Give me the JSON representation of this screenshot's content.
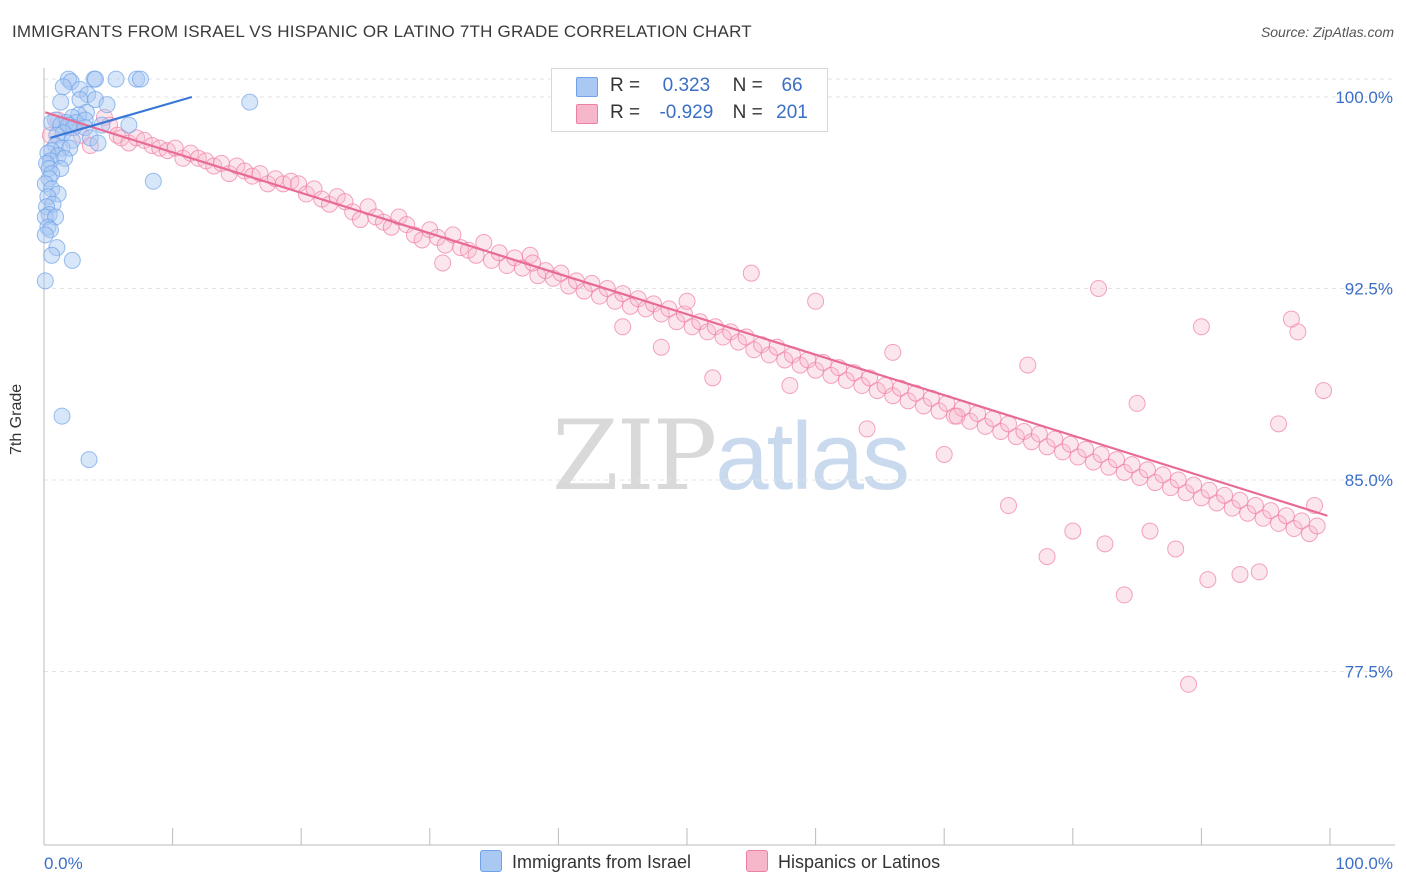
{
  "title": "IMMIGRANTS FROM ISRAEL VS HISPANIC OR LATINO 7TH GRADE CORRELATION CHART",
  "source": "Source: ZipAtlas.com",
  "watermark": {
    "zip": "ZIP",
    "atlas": "atlas"
  },
  "stats": [
    {
      "r_label": "R = ",
      "r_value": "0.323",
      "n_label": "N = ",
      "n_value": "66",
      "color": "#a9c8f2"
    },
    {
      "r_label": "R = ",
      "r_value": "-0.929",
      "n_label": "N = ",
      "n_value": "201",
      "color": "#f6b7ca"
    }
  ],
  "legend": [
    {
      "label": "Immigrants from Israel",
      "color": "#a9c8f2"
    },
    {
      "label": "Hispanics or Latinos",
      "color": "#f6b7ca"
    }
  ],
  "chart_data": {
    "type": "scatter",
    "title": "IMMIGRANTS FROM ISRAEL VS HISPANIC OR LATINO 7TH GRADE CORRELATION CHART",
    "xlabel": "",
    "ylabel": "7th Grade",
    "xlim": [
      0,
      100
    ],
    "ylim": [
      70,
      100.8
    ],
    "x_tick_labels": [
      "0.0%",
      "100.0%"
    ],
    "y_ticks": [
      100.0,
      92.5,
      85.0,
      77.5
    ],
    "y_tick_labels": [
      "100.0%",
      "92.5%",
      "85.0%",
      "77.5%"
    ],
    "grid": true,
    "series": [
      {
        "name": "Immigrants from Israel",
        "color": "#6fa2e8",
        "trend": {
          "x": [
            0.5,
            11.5
          ],
          "y": 98.4,
          "y2": 100.0
        },
        "points": [
          [
            1.9,
            100.7
          ],
          [
            3.9,
            100.7
          ],
          [
            4.0,
            100.7
          ],
          [
            5.6,
            100.7
          ],
          [
            7.2,
            100.7
          ],
          [
            7.5,
            100.7
          ],
          [
            2.1,
            100.6
          ],
          [
            1.5,
            100.4
          ],
          [
            2.8,
            100.3
          ],
          [
            3.4,
            100.1
          ],
          [
            2.8,
            99.9
          ],
          [
            1.3,
            99.8
          ],
          [
            4.0,
            99.9
          ],
          [
            4.9,
            99.7
          ],
          [
            3.3,
            99.4
          ],
          [
            2.7,
            99.3
          ],
          [
            2.2,
            99.2
          ],
          [
            2.5,
            99.0
          ],
          [
            1.7,
            99.0
          ],
          [
            3.2,
            99.1
          ],
          [
            0.9,
            99.1
          ],
          [
            0.6,
            99.0
          ],
          [
            1.3,
            98.9
          ],
          [
            1.9,
            98.9
          ],
          [
            2.3,
            98.8
          ],
          [
            3.2,
            98.8
          ],
          [
            4.5,
            98.9
          ],
          [
            6.6,
            98.9
          ],
          [
            1.5,
            98.6
          ],
          [
            1.0,
            98.5
          ],
          [
            2.2,
            98.3
          ],
          [
            3.6,
            98.4
          ],
          [
            4.2,
            98.2
          ],
          [
            0.9,
            98.1
          ],
          [
            1.4,
            98.0
          ],
          [
            2.0,
            98.0
          ],
          [
            0.6,
            97.9
          ],
          [
            0.3,
            97.8
          ],
          [
            1.1,
            97.7
          ],
          [
            1.6,
            97.6
          ],
          [
            0.5,
            97.5
          ],
          [
            0.2,
            97.4
          ],
          [
            0.4,
            97.2
          ],
          [
            1.3,
            97.2
          ],
          [
            0.6,
            97.0
          ],
          [
            0.4,
            96.8
          ],
          [
            0.1,
            96.6
          ],
          [
            0.6,
            96.4
          ],
          [
            1.1,
            96.2
          ],
          [
            0.3,
            96.1
          ],
          [
            0.7,
            95.8
          ],
          [
            0.2,
            95.7
          ],
          [
            0.4,
            95.4
          ],
          [
            0.1,
            95.3
          ],
          [
            0.9,
            95.3
          ],
          [
            0.3,
            94.9
          ],
          [
            0.5,
            94.8
          ],
          [
            0.1,
            94.6
          ],
          [
            1.0,
            94.1
          ],
          [
            0.6,
            93.8
          ],
          [
            2.2,
            93.6
          ],
          [
            8.5,
            96.7
          ],
          [
            16.0,
            99.8
          ],
          [
            0.1,
            92.8
          ],
          [
            1.4,
            87.5
          ],
          [
            3.5,
            85.8
          ]
        ]
      },
      {
        "name": "Hispanics or Latinos",
        "color": "#ef7ea3",
        "trend": {
          "x": [
            0.1,
            99.8
          ],
          "y": 99.4,
          "y2": 83.6
        },
        "points": [
          [
            0.5,
            98.5
          ],
          [
            1.1,
            99.1
          ],
          [
            2.0,
            98.8
          ],
          [
            2.9,
            98.5
          ],
          [
            3.6,
            98.1
          ],
          [
            4.7,
            99.2
          ],
          [
            5.1,
            98.9
          ],
          [
            5.7,
            98.5
          ],
          [
            6.0,
            98.4
          ],
          [
            6.6,
            98.2
          ],
          [
            7.2,
            98.4
          ],
          [
            7.8,
            98.3
          ],
          [
            8.4,
            98.1
          ],
          [
            9.0,
            98.0
          ],
          [
            9.6,
            97.9
          ],
          [
            10.2,
            98.0
          ],
          [
            10.8,
            97.6
          ],
          [
            11.4,
            97.8
          ],
          [
            12.0,
            97.6
          ],
          [
            12.6,
            97.5
          ],
          [
            13.2,
            97.3
          ],
          [
            13.8,
            97.4
          ],
          [
            14.4,
            97.0
          ],
          [
            15.0,
            97.3
          ],
          [
            15.6,
            97.1
          ],
          [
            16.2,
            96.9
          ],
          [
            16.8,
            97.0
          ],
          [
            17.4,
            96.6
          ],
          [
            18.0,
            96.8
          ],
          [
            18.6,
            96.6
          ],
          [
            19.2,
            96.7
          ],
          [
            19.8,
            96.6
          ],
          [
            20.4,
            96.2
          ],
          [
            21.0,
            96.4
          ],
          [
            21.6,
            96.0
          ],
          [
            22.2,
            95.8
          ],
          [
            22.8,
            96.1
          ],
          [
            23.4,
            95.9
          ],
          [
            24.0,
            95.5
          ],
          [
            24.6,
            95.2
          ],
          [
            25.2,
            95.7
          ],
          [
            25.8,
            95.3
          ],
          [
            26.4,
            95.1
          ],
          [
            27.0,
            94.9
          ],
          [
            27.6,
            95.3
          ],
          [
            28.2,
            95.0
          ],
          [
            28.8,
            94.6
          ],
          [
            29.4,
            94.4
          ],
          [
            30.0,
            94.8
          ],
          [
            30.6,
            94.5
          ],
          [
            31.2,
            94.2
          ],
          [
            31.8,
            94.6
          ],
          [
            32.4,
            94.1
          ],
          [
            33.0,
            94.0
          ],
          [
            33.6,
            93.8
          ],
          [
            34.2,
            94.3
          ],
          [
            34.8,
            93.6
          ],
          [
            35.4,
            93.9
          ],
          [
            36.0,
            93.4
          ],
          [
            36.6,
            93.7
          ],
          [
            37.2,
            93.3
          ],
          [
            37.8,
            93.8
          ],
          [
            38.4,
            93.0
          ],
          [
            39.0,
            93.2
          ],
          [
            39.6,
            92.9
          ],
          [
            40.2,
            93.1
          ],
          [
            40.8,
            92.6
          ],
          [
            41.4,
            92.8
          ],
          [
            42.0,
            92.4
          ],
          [
            42.6,
            92.7
          ],
          [
            43.2,
            92.2
          ],
          [
            43.8,
            92.5
          ],
          [
            44.4,
            92.0
          ],
          [
            45.0,
            92.3
          ],
          [
            45.6,
            91.8
          ],
          [
            46.2,
            92.1
          ],
          [
            46.8,
            91.7
          ],
          [
            47.4,
            91.9
          ],
          [
            48.0,
            91.5
          ],
          [
            48.6,
            91.7
          ],
          [
            49.2,
            91.2
          ],
          [
            49.8,
            91.5
          ],
          [
            50.4,
            91.0
          ],
          [
            51.0,
            91.2
          ],
          [
            51.6,
            90.8
          ],
          [
            52.2,
            91.0
          ],
          [
            52.8,
            90.6
          ],
          [
            53.4,
            90.8
          ],
          [
            54.0,
            90.4
          ],
          [
            54.6,
            90.6
          ],
          [
            55.2,
            90.1
          ],
          [
            55.8,
            90.3
          ],
          [
            56.4,
            89.9
          ],
          [
            57.0,
            90.2
          ],
          [
            57.6,
            89.7
          ],
          [
            58.2,
            89.9
          ],
          [
            58.8,
            89.5
          ],
          [
            59.4,
            89.7
          ],
          [
            60.0,
            89.3
          ],
          [
            60.6,
            89.6
          ],
          [
            61.2,
            89.1
          ],
          [
            61.8,
            89.4
          ],
          [
            62.4,
            88.9
          ],
          [
            63.0,
            89.2
          ],
          [
            63.6,
            88.7
          ],
          [
            64.2,
            89.0
          ],
          [
            64.8,
            88.5
          ],
          [
            65.4,
            88.7
          ],
          [
            66.0,
            88.3
          ],
          [
            66.6,
            88.6
          ],
          [
            67.2,
            88.1
          ],
          [
            67.8,
            88.4
          ],
          [
            68.4,
            87.9
          ],
          [
            69.0,
            88.2
          ],
          [
            69.6,
            87.7
          ],
          [
            70.2,
            88.0
          ],
          [
            70.8,
            87.5
          ],
          [
            71.4,
            87.8
          ],
          [
            72.0,
            87.3
          ],
          [
            72.6,
            87.6
          ],
          [
            73.2,
            87.1
          ],
          [
            73.8,
            87.4
          ],
          [
            74.4,
            86.9
          ],
          [
            75.0,
            87.2
          ],
          [
            75.6,
            86.7
          ],
          [
            76.2,
            86.9
          ],
          [
            76.8,
            86.5
          ],
          [
            77.4,
            86.8
          ],
          [
            78.0,
            86.3
          ],
          [
            78.6,
            86.6
          ],
          [
            79.2,
            86.1
          ],
          [
            79.8,
            86.4
          ],
          [
            80.4,
            85.9
          ],
          [
            81.0,
            86.2
          ],
          [
            81.6,
            85.7
          ],
          [
            82.2,
            86.0
          ],
          [
            82.8,
            85.5
          ],
          [
            83.4,
            85.8
          ],
          [
            84.0,
            85.3
          ],
          [
            84.6,
            85.6
          ],
          [
            85.2,
            85.1
          ],
          [
            85.8,
            85.4
          ],
          [
            86.4,
            84.9
          ],
          [
            87.0,
            85.2
          ],
          [
            87.6,
            84.7
          ],
          [
            88.2,
            85.0
          ],
          [
            88.8,
            84.5
          ],
          [
            89.4,
            84.8
          ],
          [
            90.0,
            84.3
          ],
          [
            90.6,
            84.6
          ],
          [
            91.2,
            84.1
          ],
          [
            91.8,
            84.4
          ],
          [
            92.4,
            83.9
          ],
          [
            93.0,
            84.2
          ],
          [
            93.6,
            83.7
          ],
          [
            94.2,
            84.0
          ],
          [
            94.8,
            83.5
          ],
          [
            95.4,
            83.8
          ],
          [
            96.0,
            83.3
          ],
          [
            96.6,
            83.6
          ],
          [
            97.2,
            83.1
          ],
          [
            97.8,
            83.4
          ],
          [
            98.4,
            82.9
          ],
          [
            99.0,
            83.2
          ],
          [
            31.0,
            93.5
          ],
          [
            38.0,
            93.5
          ],
          [
            45.0,
            91.0
          ],
          [
            48.0,
            90.2
          ],
          [
            52.0,
            89.0
          ],
          [
            58.0,
            88.7
          ],
          [
            64.0,
            87.0
          ],
          [
            70.0,
            86.0
          ],
          [
            75.0,
            84.0
          ],
          [
            78.0,
            82.0
          ],
          [
            80.0,
            83.0
          ],
          [
            82.5,
            82.5
          ],
          [
            84.0,
            80.5
          ],
          [
            86.0,
            83.0
          ],
          [
            88.0,
            82.3
          ],
          [
            90.5,
            81.1
          ],
          [
            93.0,
            81.3
          ],
          [
            94.5,
            81.4
          ],
          [
            96.0,
            87.2
          ],
          [
            97.5,
            90.8
          ],
          [
            98.8,
            84.0
          ],
          [
            99.5,
            88.5
          ],
          [
            97.0,
            91.3
          ],
          [
            90.0,
            91.0
          ],
          [
            85.0,
            88.0
          ],
          [
            82.0,
            92.5
          ],
          [
            76.5,
            89.5
          ],
          [
            71.0,
            87.5
          ],
          [
            66.0,
            90.0
          ],
          [
            60.0,
            92.0
          ],
          [
            55.0,
            93.1
          ],
          [
            50.0,
            92.0
          ],
          [
            89.0,
            77.0
          ]
        ]
      }
    ]
  }
}
